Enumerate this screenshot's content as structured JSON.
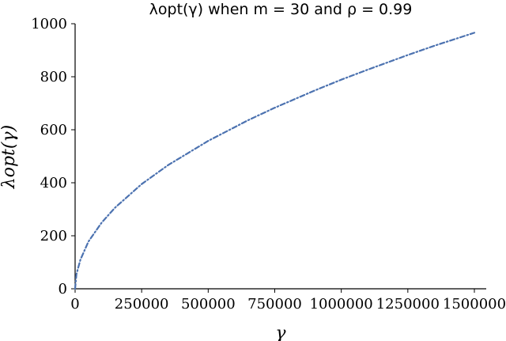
{
  "chart_data": {
    "type": "line",
    "title": "λopt(γ) when m = 30 and ρ = 0.99",
    "xlabel": "γ",
    "ylabel": "λopt(γ)",
    "xlim": [
      0,
      1500000
    ],
    "ylim": [
      0,
      1000
    ],
    "x_ticks": [
      "0",
      "250000",
      "500000",
      "750000",
      "1000000",
      "1250000",
      "1500000"
    ],
    "y_ticks": [
      "0",
      "200",
      "400",
      "600",
      "800",
      "1000"
    ],
    "grid": false,
    "legend": "none",
    "series_color": "#4C72B0",
    "series": [
      {
        "x": [
          0,
          5000,
          20000,
          50000,
          100000,
          150000,
          250000,
          350000,
          500000,
          650000,
          750000,
          900000,
          1000000,
          1100000,
          1250000,
          1350000,
          1500000
        ],
        "y": [
          0,
          55,
          110,
          178,
          250,
          306,
          395,
          467,
          558,
          636,
          683,
          748,
          789,
          827,
          882,
          917,
          966
        ]
      }
    ]
  }
}
